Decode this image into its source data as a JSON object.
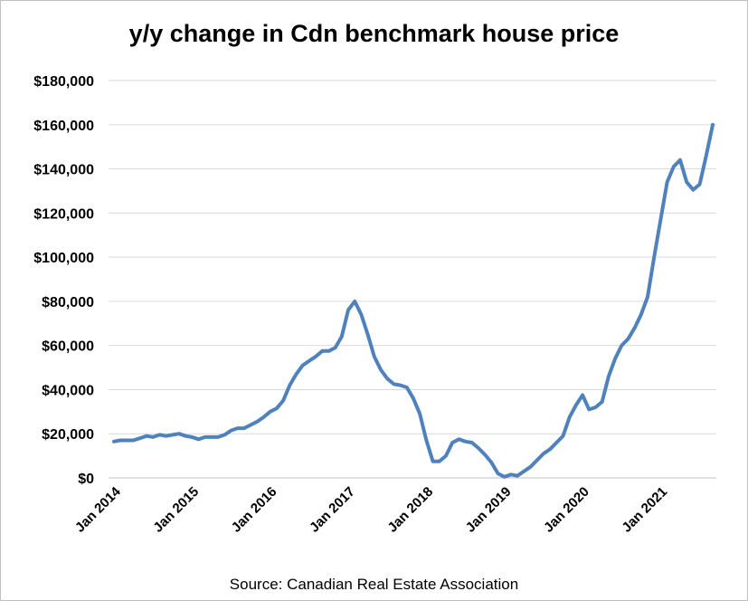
{
  "chart_data": {
    "type": "line",
    "title": "y/y change in Cdn benchmark house price",
    "source": "Source: Canadian Real Estate Association",
    "xlabel": "",
    "ylabel": "",
    "ylim": [
      0,
      180000
    ],
    "y_ticks": [
      0,
      20000,
      40000,
      60000,
      80000,
      100000,
      120000,
      140000,
      160000,
      180000
    ],
    "y_tick_labels": [
      "$0",
      "$20,000",
      "$40,000",
      "$60,000",
      "$80,000",
      "$100,000",
      "$120,000",
      "$140,000",
      "$160,000",
      "$180,000"
    ],
    "x_tick_labels": [
      "Jan 2014",
      "Jan 2015",
      "Jan 2016",
      "Jan 2017",
      "Jan 2018",
      "Jan 2019",
      "Jan 2020",
      "Jan 2021"
    ],
    "grid": true,
    "legend": "none",
    "line_color": "#4F81BD",
    "series": [
      {
        "start": "2014-01",
        "frequency": "monthly",
        "values": [
          16500,
          17000,
          17000,
          17000,
          18000,
          19000,
          18500,
          19500,
          19000,
          19500,
          20000,
          19000,
          18500,
          17500,
          18500,
          18500,
          18500,
          19500,
          21500,
          22500,
          22500,
          24000,
          25500,
          27500,
          30000,
          31500,
          35000,
          42000,
          47000,
          51000,
          53000,
          55000,
          57500,
          57500,
          59000,
          64000,
          76000,
          80000,
          74000,
          65000,
          55000,
          49000,
          45000,
          42500,
          42000,
          41000,
          36000,
          29000,
          17000,
          7500,
          7500,
          10000,
          16000,
          17500,
          16500,
          16000,
          13500,
          10500,
          7000,
          2000,
          500,
          1500,
          1000,
          3000,
          5000,
          8000,
          11000,
          13000,
          16000,
          19000,
          27500,
          33000,
          37500,
          31000,
          32000,
          34500,
          46000,
          54000,
          60000,
          63000,
          68000,
          74000,
          82000,
          100000,
          117000,
          134000,
          141000,
          144000,
          134000,
          130500,
          133000,
          146000,
          160000
        ]
      }
    ]
  }
}
